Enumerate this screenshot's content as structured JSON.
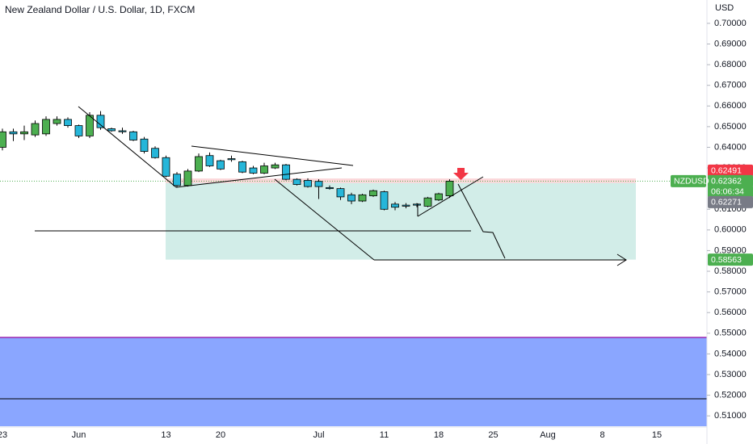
{
  "chart_data": {
    "type": "candlestick",
    "title": "New Zealand Dollar / U.S. Dollar, 1D, FXCM",
    "y_axis_label": "USD",
    "categories": [
      "23",
      null,
      null,
      null,
      null,
      null,
      null,
      "Jun",
      null,
      null,
      null,
      null,
      null,
      null,
      null,
      "13",
      null,
      null,
      null,
      null,
      "20",
      null,
      null,
      null,
      null,
      null,
      null,
      null,
      null,
      "Jul",
      null,
      null,
      null,
      null,
      null,
      "11",
      null,
      null,
      null,
      null,
      "18",
      null,
      null,
      null,
      null,
      "25",
      null,
      null,
      null,
      null,
      "Aug",
      null,
      null,
      null,
      null,
      "8",
      null,
      null,
      null,
      null,
      "15",
      null,
      null,
      null,
      null
    ],
    "up_color": "#4caf50",
    "down_color": "#26b6d9",
    "series": [
      {
        "name": "open",
        "values": [
          0.64,
          0.6475,
          0.6465,
          0.646,
          0.6465,
          0.6515,
          0.6535,
          0.6505,
          0.6455,
          0.6555,
          0.649,
          0.648,
          0.6475,
          0.644,
          0.6395,
          0.635,
          0.627,
          0.6215,
          0.6285,
          0.636,
          0.6335,
          0.6345,
          0.633,
          0.63,
          0.6275,
          0.63,
          0.6315,
          0.6245,
          0.624,
          0.6235,
          0.6205,
          0.62,
          0.617,
          0.614,
          0.6165,
          0.6185,
          0.6125,
          0.612,
          0.6125,
          0.6115,
          0.6145,
          0.6165,
          null,
          null,
          null,
          null,
          null,
          null,
          null,
          null,
          null,
          null,
          null,
          null,
          null,
          null,
          null,
          null,
          null,
          null,
          null,
          null,
          null,
          null,
          null
        ]
      },
      {
        "name": "high",
        "values": [
          0.649,
          0.649,
          0.6505,
          0.653,
          0.655,
          0.655,
          0.6545,
          0.651,
          0.657,
          0.6575,
          0.6495,
          0.6495,
          0.648,
          0.645,
          0.6405,
          0.636,
          0.628,
          0.6295,
          0.637,
          0.6375,
          0.634,
          0.636,
          0.6335,
          0.631,
          0.6325,
          0.6325,
          0.632,
          0.625,
          0.625,
          0.6245,
          0.6215,
          0.6205,
          0.618,
          0.6175,
          0.6195,
          0.619,
          0.6135,
          0.613,
          0.613,
          0.616,
          0.618,
          0.6245,
          null,
          null,
          null,
          null,
          null,
          null,
          null,
          null,
          null,
          null,
          null,
          null,
          null,
          null,
          null,
          null,
          null,
          null,
          null,
          null,
          null,
          null,
          null
        ]
      },
      {
        "name": "low",
        "values": [
          0.6385,
          0.643,
          0.6435,
          0.645,
          0.6455,
          0.6505,
          0.6495,
          0.6445,
          0.6445,
          0.6485,
          0.6475,
          0.6465,
          0.643,
          0.637,
          0.6345,
          0.6255,
          0.6205,
          0.621,
          0.628,
          0.6305,
          0.629,
          0.633,
          0.6275,
          0.627,
          0.627,
          0.6295,
          0.624,
          0.6215,
          0.6205,
          0.615,
          0.6195,
          0.6145,
          0.6125,
          0.6135,
          0.616,
          0.6095,
          0.6095,
          0.6105,
          0.611,
          0.611,
          0.614,
          0.6155,
          null,
          null,
          null,
          null,
          null,
          null,
          null,
          null,
          null,
          null,
          null,
          null,
          null,
          null,
          null,
          null,
          null,
          null,
          null,
          null,
          null,
          null,
          null
        ]
      },
      {
        "name": "close",
        "values": [
          0.6475,
          0.6465,
          0.6475,
          0.6515,
          0.6535,
          0.6535,
          0.6505,
          0.6455,
          0.6555,
          0.6495,
          0.648,
          0.6475,
          0.6435,
          0.638,
          0.635,
          0.626,
          0.6215,
          0.6285,
          0.6355,
          0.631,
          0.6295,
          0.634,
          0.628,
          0.6275,
          0.631,
          0.6315,
          0.6245,
          0.622,
          0.621,
          0.621,
          0.62,
          0.616,
          0.614,
          0.617,
          0.619,
          0.61,
          0.611,
          0.6115,
          0.612,
          0.6155,
          0.6175,
          0.62362,
          null,
          null,
          null,
          null,
          null,
          null,
          null,
          null,
          null,
          null,
          null,
          null,
          null,
          null,
          null,
          null,
          null,
          null,
          null,
          null,
          null,
          null,
          null
        ]
      }
    ],
    "ylim": [
      0.5042,
      0.7113
    ],
    "yticks": [
      {
        "value": 0.7,
        "label": "0.70000"
      },
      {
        "value": 0.69,
        "label": "0.69000"
      },
      {
        "value": 0.68,
        "label": "0.68000"
      },
      {
        "value": 0.67,
        "label": "0.67000"
      },
      {
        "value": 0.66,
        "label": "0.66000"
      },
      {
        "value": 0.65,
        "label": "0.65000"
      },
      {
        "value": 0.64,
        "label": "0.64000"
      },
      {
        "value": 0.63,
        "label": "0.63000"
      },
      {
        "value": 0.61,
        "label": "0.61000"
      },
      {
        "value": 0.6,
        "label": "0.60000"
      },
      {
        "value": 0.59,
        "label": "0.59000"
      },
      {
        "value": 0.58,
        "label": "0.58000"
      },
      {
        "value": 0.57,
        "label": "0.57000"
      },
      {
        "value": 0.56,
        "label": "0.56000"
      },
      {
        "value": 0.55,
        "label": "0.55000"
      },
      {
        "value": 0.54,
        "label": "0.54000"
      },
      {
        "value": 0.53,
        "label": "0.53000"
      },
      {
        "value": 0.52,
        "label": "0.52000"
      },
      {
        "value": 0.51,
        "label": "0.51000"
      }
    ],
    "symbol_tag": {
      "label": "NZDUSD",
      "value": 0.62362,
      "countdown": "06:06:34",
      "color": "#4caf50"
    },
    "levels": [
      {
        "value": 0.62491,
        "color": "#f23645"
      },
      {
        "value": 0.62271,
        "color": "#787b86"
      },
      {
        "value": 0.58563,
        "color": "#4caf50"
      }
    ]
  }
}
